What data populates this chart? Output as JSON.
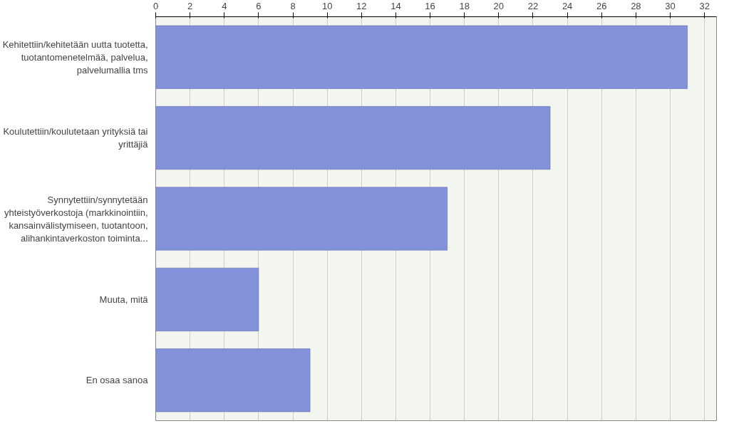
{
  "chart_data": {
    "type": "bar",
    "orientation": "horizontal",
    "categories": [
      "Kehitettiin/kehitetään uutta tuotetta, tuotantomenetelmää, palvelua, palvelumallia tms",
      "Koulutettiin/koulutetaan yrityksiä tai yrittäjiä",
      "Synnytettiin/synnytetään yhteistyöverkostoja (markkinointiin, kansainvälistymiseen, tuotantoon, alihankintaverkoston toiminta...",
      "Muuta, mitä",
      "En osaa sanoa"
    ],
    "values": [
      31,
      23,
      17,
      6,
      9
    ],
    "color": "#8391da",
    "xlim": [
      0,
      32.7
    ],
    "xticks": [
      0,
      2,
      4,
      6,
      8,
      10,
      12,
      14,
      16,
      18,
      20,
      22,
      24,
      26,
      28,
      30,
      32
    ],
    "grid": "x"
  }
}
